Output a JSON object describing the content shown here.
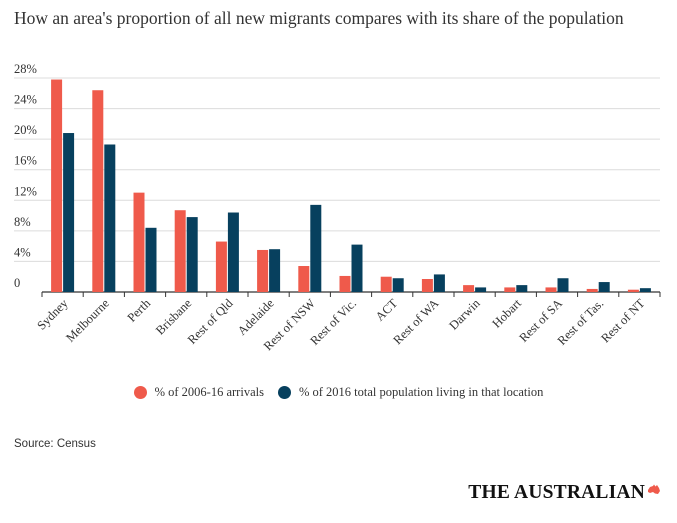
{
  "colors": {
    "arrivals": "#ef5a4b",
    "population": "#07405e",
    "grid": "#dcdcdc",
    "axis": "#333333"
  },
  "source": "Source: Census",
  "brand": "THE AUSTRALIAN",
  "chart_data": {
    "type": "bar",
    "title": "How an area's proportion of all new migrants compares with its share of the population",
    "xlabel": "",
    "ylabel": "",
    "ylim": [
      0,
      28
    ],
    "yticks": [
      "0",
      "4%",
      "8%",
      "12%",
      "16%",
      "20%",
      "24%",
      "28%"
    ],
    "ytick_values": [
      0,
      4,
      8,
      12,
      16,
      20,
      24,
      28
    ],
    "grid": true,
    "legend_position": "bottom",
    "categories": [
      "Sydney",
      "Melbourne",
      "Perth",
      "Brisbane",
      "Rest of Qld",
      "Adelaide",
      "Rest of NSW",
      "Rest of Vic.",
      "ACT",
      "Rest of WA",
      "Darwin",
      "Hobart",
      "Rest of SA",
      "Rest of Tas.",
      "Rest of NT"
    ],
    "series": [
      {
        "name": "% of 2006-16 arrivals",
        "color": "#ef5a4b",
        "values": [
          27.8,
          26.4,
          13.0,
          10.7,
          6.6,
          5.5,
          3.4,
          2.1,
          2.0,
          1.7,
          0.9,
          0.6,
          0.6,
          0.4,
          0.3
        ]
      },
      {
        "name": "% of 2016 total population living in that location",
        "color": "#07405e",
        "values": [
          20.8,
          19.3,
          8.4,
          9.8,
          10.4,
          5.6,
          11.4,
          6.2,
          1.8,
          2.3,
          0.6,
          0.9,
          1.8,
          1.3,
          0.5
        ]
      }
    ]
  }
}
